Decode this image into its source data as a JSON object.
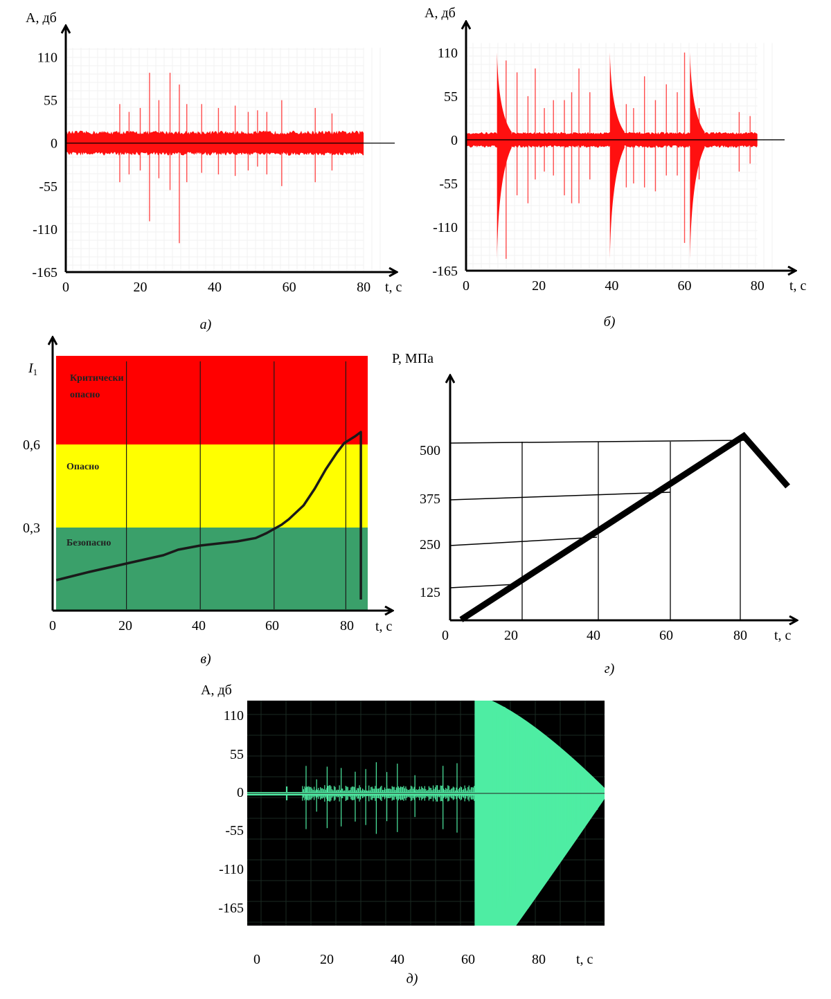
{
  "chart_data": [
    {
      "id": "a",
      "type": "line",
      "caption": "а)",
      "ylabel": "A, дб",
      "xlabel": "t, с",
      "y_ticks": [
        "110",
        "55",
        "0",
        "-55",
        "-110",
        "-165"
      ],
      "y_tick_values": [
        110,
        55,
        0,
        -55,
        -110,
        -165
      ],
      "x_ticks": [
        "0",
        "20",
        "40",
        "60",
        "80"
      ],
      "x_tick_values": [
        0,
        20,
        40,
        60,
        80
      ],
      "xlim": [
        0,
        85
      ],
      "ylim": [
        -165,
        130
      ],
      "signal_end": 80,
      "noise_amplitude": 16,
      "color": "#ff1010",
      "spikes": [
        {
          "t": 14.5,
          "up": 50,
          "down": -50
        },
        {
          "t": 17,
          "up": 40,
          "down": -40
        },
        {
          "t": 20,
          "up": 45,
          "down": -35
        },
        {
          "t": 22.5,
          "up": 90,
          "down": -100
        },
        {
          "t": 25,
          "up": 55,
          "down": -45
        },
        {
          "t": 28,
          "up": 90,
          "down": -60
        },
        {
          "t": 30.5,
          "up": 75,
          "down": -128
        },
        {
          "t": 32.5,
          "up": 50,
          "down": -50
        },
        {
          "t": 36.5,
          "up": 50,
          "down": -38
        },
        {
          "t": 41,
          "up": 45,
          "down": -40
        },
        {
          "t": 45.5,
          "up": 48,
          "down": -42
        },
        {
          "t": 49,
          "up": 40,
          "down": -35
        },
        {
          "t": 51.5,
          "up": 42,
          "down": -30
        },
        {
          "t": 54,
          "up": 40,
          "down": -40
        },
        {
          "t": 58,
          "up": 55,
          "down": -55
        },
        {
          "t": 67,
          "up": 45,
          "down": -50
        },
        {
          "t": 71.5,
          "up": 38,
          "down": -35
        }
      ]
    },
    {
      "id": "b",
      "type": "line",
      "caption": "б)",
      "ylabel": "A, дб",
      "xlabel": "t, с",
      "y_ticks": [
        "110",
        "55",
        "0",
        "-55",
        "-110",
        "-165"
      ],
      "y_tick_values": [
        110,
        55,
        0,
        -55,
        -110,
        -165
      ],
      "x_ticks": [
        "0",
        "20",
        "40",
        "60",
        "80"
      ],
      "x_tick_values": [
        0,
        20,
        40,
        60,
        80
      ],
      "xlim": [
        0,
        85
      ],
      "ylim": [
        -165,
        130
      ],
      "signal_end": 80,
      "noise_amplitude": 10,
      "color": "#ff1010",
      "bursts": [
        {
          "t": 8.5,
          "up": 110,
          "down": -150
        },
        {
          "t": 39.5,
          "up": 110,
          "down": -150
        },
        {
          "t": 61.5,
          "up": 110,
          "down": -150
        }
      ],
      "spikes": [
        {
          "t": 11,
          "up": 100,
          "down": -150
        },
        {
          "t": 14,
          "up": 85,
          "down": -70
        },
        {
          "t": 17,
          "up": 55,
          "down": -80
        },
        {
          "t": 19,
          "up": 90,
          "down": -50
        },
        {
          "t": 21.5,
          "up": 40,
          "down": -40
        },
        {
          "t": 24,
          "up": 50,
          "down": -45
        },
        {
          "t": 27,
          "up": 50,
          "down": -70
        },
        {
          "t": 29,
          "up": 60,
          "down": -80
        },
        {
          "t": 31,
          "up": 90,
          "down": -80
        },
        {
          "t": 34,
          "up": 60,
          "down": -50
        },
        {
          "t": 44,
          "up": 45,
          "down": -60
        },
        {
          "t": 46,
          "up": 40,
          "down": -55
        },
        {
          "t": 49,
          "up": 80,
          "down": -60
        },
        {
          "t": 52,
          "up": 50,
          "down": -65
        },
        {
          "t": 55,
          "up": 70,
          "down": -45
        },
        {
          "t": 58,
          "up": 60,
          "down": -45
        },
        {
          "t": 60,
          "up": 110,
          "down": -130
        },
        {
          "t": 64,
          "up": 40,
          "down": -50
        },
        {
          "t": 75,
          "up": 35,
          "down": -40
        },
        {
          "t": 78,
          "up": 30,
          "down": -30
        }
      ]
    },
    {
      "id": "c",
      "type": "area",
      "caption": "в)",
      "ylabel": "I1",
      "xlabel": "t, с",
      "y_ticks": [
        "0,6",
        "0,3"
      ],
      "y_tick_values": [
        0.6,
        0.3
      ],
      "x_ticks": [
        "0",
        "20",
        "40",
        "60",
        "80"
      ],
      "x_tick_values": [
        0,
        20,
        40,
        60,
        80
      ],
      "xlim": [
        0,
        90
      ],
      "ylim": [
        0,
        0.9
      ],
      "zones": [
        {
          "label": "Критически\nопасно",
          "from": 0.6,
          "to": 0.92,
          "color": "#ff0000"
        },
        {
          "label": "Опасно",
          "from": 0.3,
          "to": 0.6,
          "color": "#ffff00"
        },
        {
          "label": "Безопасно",
          "from": 0.0,
          "to": 0.3,
          "color": "#3aa06a"
        }
      ],
      "curve": {
        "x": [
          1,
          10,
          20,
          30,
          34,
          40,
          50,
          55,
          58,
          62,
          64,
          68,
          71,
          74,
          77,
          79,
          82,
          83.5,
          83.5
        ],
        "y": [
          0.11,
          0.14,
          0.17,
          0.2,
          0.22,
          0.235,
          0.25,
          0.262,
          0.28,
          0.31,
          0.33,
          0.38,
          0.44,
          0.51,
          0.57,
          0.605,
          0.63,
          0.645,
          0.04
        ]
      }
    },
    {
      "id": "d",
      "type": "line",
      "caption": "г)",
      "ylabel": "P, МПа",
      "xlabel": "t, с",
      "y_ticks": [
        "500",
        "375",
        "250",
        "125"
      ],
      "y_tick_values": [
        500,
        375,
        250,
        125
      ],
      "x_ticks": [
        "0",
        "20",
        "40",
        "60",
        "80"
      ],
      "x_tick_values": [
        0,
        20,
        40,
        60,
        80
      ],
      "xlim": [
        0,
        95
      ],
      "ylim": [
        0,
        620
      ],
      "line": {
        "x": [
          3,
          80,
          92
        ],
        "y": [
          0,
          510,
          370
        ]
      }
    },
    {
      "id": "e",
      "type": "line",
      "caption": "д)",
      "ylabel": "A, дб",
      "xlabel": "t, с",
      "y_ticks": [
        "110",
        "55",
        "0",
        "-55",
        "-110",
        "-165"
      ],
      "y_tick_values": [
        110,
        55,
        0,
        -55,
        -110,
        -165
      ],
      "x_ticks": [
        "0",
        "20",
        "40",
        "60",
        "80"
      ],
      "x_tick_values": [
        0,
        20,
        40,
        60,
        80
      ],
      "xlim": [
        -3,
        98
      ],
      "ylim": [
        -185,
        130
      ],
      "background": "#000000",
      "color": "#4eeda3",
      "onset": 62,
      "end": 98
    }
  ]
}
